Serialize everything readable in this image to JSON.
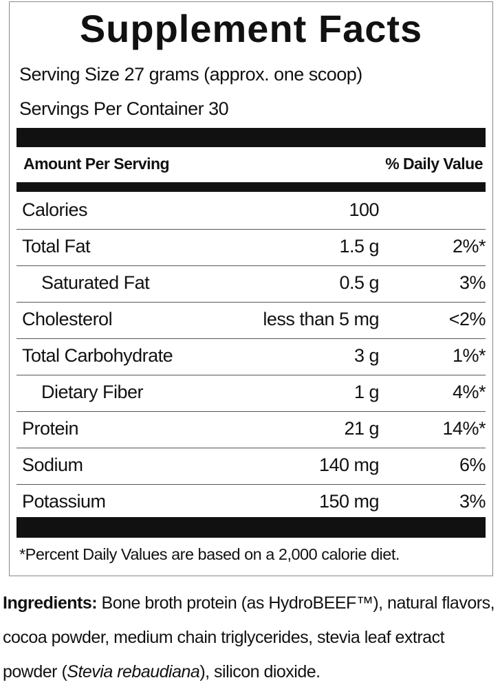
{
  "title": "Supplement Facts",
  "serving_size": "Serving Size 27 grams (approx. one scoop)",
  "servings_per_container": "Servings Per Container 30",
  "header": {
    "amount": "Amount Per Serving",
    "dv": "% Daily Value"
  },
  "rows": [
    {
      "name": "Calories",
      "amount": "100",
      "dv": null
    },
    {
      "name": "Total Fat",
      "amount": "1.5 g",
      "dv": "2%*"
    },
    {
      "name": "Saturated Fat",
      "amount": "0.5 g",
      "dv": "3%",
      "indent": true
    },
    {
      "name": "Cholesterol",
      "amount": "less than 5 mg",
      "dv": "<2%"
    },
    {
      "name": "Total Carbohydrate",
      "amount": "3 g",
      "dv": "1%*"
    },
    {
      "name": "Dietary Fiber",
      "amount": "1 g",
      "dv": "4%*",
      "indent": true
    },
    {
      "name": "Protein",
      "amount": "21 g",
      "dv": "14%*"
    },
    {
      "name": "Sodium",
      "amount": "140 mg",
      "dv": "6%"
    },
    {
      "name": "Potassium",
      "amount": "150 mg",
      "dv": "3%"
    }
  ],
  "footnote": "*Percent Daily Values are based on a 2,000 calorie diet.",
  "ingredients": {
    "label": "Ingredients:",
    "text_before": " Bone broth protein (as HydroBEEF™), natural flavors, cocoa powder, medium chain triglycerides, stevia leaf extract powder (",
    "italic": "Stevia rebaudiana",
    "text_after": "), silicon dioxide."
  }
}
